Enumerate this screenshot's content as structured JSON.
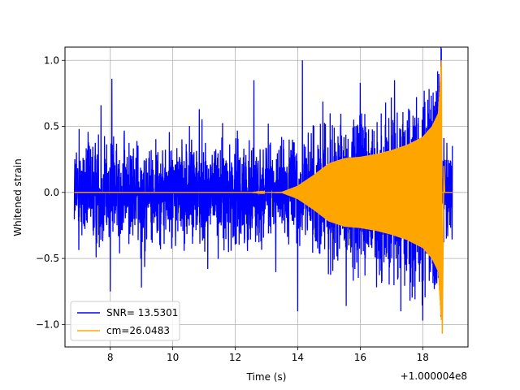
{
  "chart_data": {
    "type": "line",
    "xlabel": "Time (s)",
    "ylabel": "Whitened strain",
    "x_offset_label": "+1.000004e8",
    "xlim": [
      6.55,
      19.45
    ],
    "ylim": [
      -1.17,
      1.1
    ],
    "x_ticks": [
      8,
      10,
      12,
      14,
      16,
      18
    ],
    "x_tick_labels": [
      "8",
      "10",
      "12",
      "14",
      "16",
      "18"
    ],
    "y_ticks": [
      1.0,
      0.5,
      0.0,
      -0.5,
      -1.0
    ],
    "y_tick_labels": [
      "1.0",
      "0.5",
      "0.0",
      "−0.5",
      "−1.0"
    ],
    "grid": true,
    "legend_position": "lower-left",
    "series": [
      {
        "name": "SNR= 13.5301",
        "color": "#0000ff",
        "kind": "whitened-noise-plus-signal",
        "x_range": [
          6.85,
          18.95
        ],
        "typical_amplitude": 0.45,
        "peak_values": [
          {
            "x": 7.0,
            "y": 0.48
          },
          {
            "x": 7.7,
            "y": 0.66
          },
          {
            "x": 8.05,
            "y": 0.86
          },
          {
            "x": 9.0,
            "y": 0.7
          },
          {
            "x": 10.85,
            "y": 0.63
          },
          {
            "x": 12.6,
            "y": 0.85
          },
          {
            "x": 14.15,
            "y": 1.0
          },
          {
            "x": 16.0,
            "y": 0.83
          },
          {
            "x": 17.1,
            "y": 0.85
          },
          {
            "x": 18.05,
            "y": 0.77
          },
          {
            "x": 8.0,
            "y": -0.75
          },
          {
            "x": 9.0,
            "y": -0.72
          },
          {
            "x": 14.0,
            "y": -0.9
          },
          {
            "x": 15.55,
            "y": -0.86
          },
          {
            "x": 17.3,
            "y": -0.9
          },
          {
            "x": 18.0,
            "y": -0.97
          },
          {
            "x": 18.4,
            "y": -0.7
          }
        ]
      },
      {
        "name": "cm=26.0483",
        "color": "#ffa500",
        "kind": "chirp-template",
        "x_range": [
          6.85,
          18.95
        ],
        "merger_x": 18.6,
        "envelope": [
          {
            "x": 6.85,
            "y": 0.0
          },
          {
            "x": 12.5,
            "y": 0.0
          },
          {
            "x": 13.5,
            "y": 0.005
          },
          {
            "x": 14.0,
            "y": 0.05
          },
          {
            "x": 14.5,
            "y": 0.13
          },
          {
            "x": 15.0,
            "y": 0.22
          },
          {
            "x": 15.5,
            "y": 0.26
          },
          {
            "x": 16.0,
            "y": 0.27
          },
          {
            "x": 16.5,
            "y": 0.29
          },
          {
            "x": 17.0,
            "y": 0.32
          },
          {
            "x": 17.5,
            "y": 0.36
          },
          {
            "x": 18.0,
            "y": 0.42
          },
          {
            "x": 18.3,
            "y": 0.5
          },
          {
            "x": 18.5,
            "y": 0.6
          },
          {
            "x": 18.6,
            "y": 1.0
          }
        ],
        "max": 1.0,
        "min": -1.07
      }
    ]
  }
}
